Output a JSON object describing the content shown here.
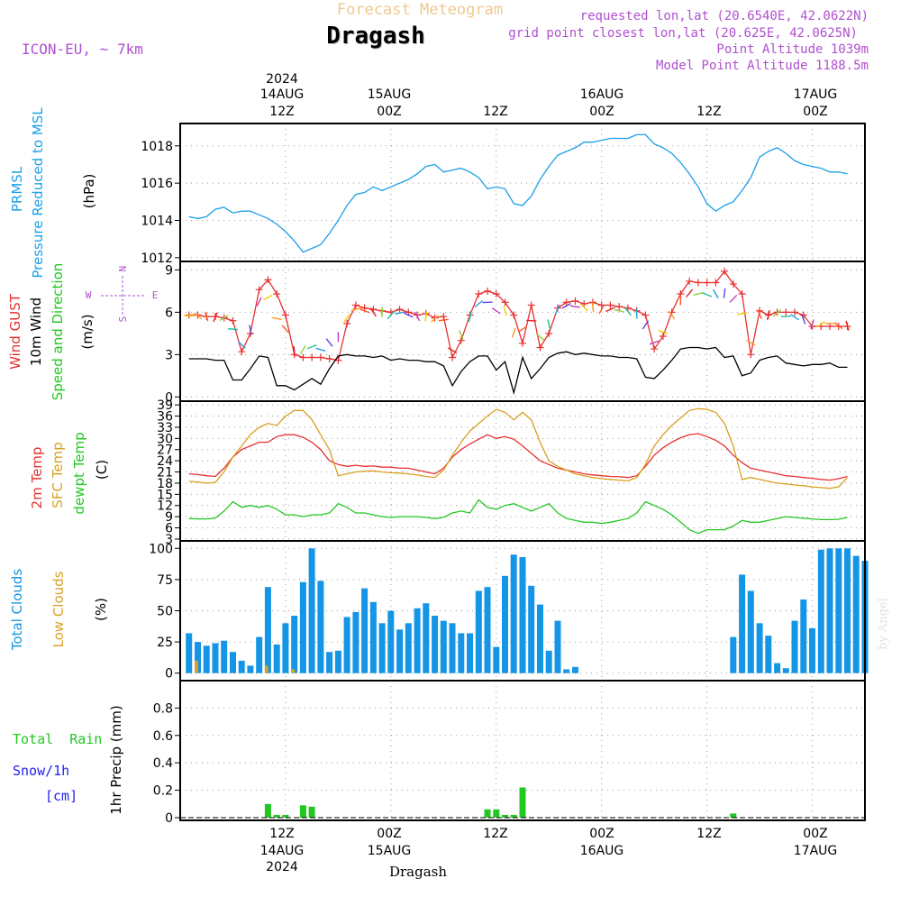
{
  "header": {
    "supertitle": "Forecast Meteogram",
    "location": "Dragash",
    "model": "ICON-EU, ~ 7km",
    "requested": "requested lon,lat (20.6540E, 42.0622N)",
    "gridpoint": "grid point closest lon,lat (20.625E, 42.0625N)",
    "point_alt": "Point Altitude 1039m",
    "model_alt": "Model Point Altitude 1188.5m",
    "credit": "by Angel",
    "bottom_label": "Dragash"
  },
  "colors": {
    "prmsl": "#1aa0e8",
    "gust": "#e83030",
    "wind10m": "#000000",
    "sfc": "#d8a020",
    "dewpt": "#22c822",
    "tcc": "#1595e6",
    "lcc": "#d9a22a",
    "rain": "#22c822",
    "snow": "#2222ee",
    "title_purple": "#b050d0",
    "supertitle": "#f0c890"
  },
  "time_axis": {
    "start_hour": 0,
    "end_hour": 78,
    "ticks": [
      {
        "hour": 12,
        "line1": "12Z",
        "line2": "14AUG",
        "line3": "2024"
      },
      {
        "hour": 24,
        "line1": "00Z",
        "line2": "15AUG",
        "line3": ""
      },
      {
        "hour": 36,
        "line1": "12Z",
        "line2": "",
        "line3": ""
      },
      {
        "hour": 48,
        "line1": "00Z",
        "line2": "16AUG",
        "line3": ""
      },
      {
        "hour": 60,
        "line1": "12Z",
        "line2": "",
        "line3": ""
      },
      {
        "hour": 72,
        "line1": "00Z",
        "line2": "17AUG",
        "line3": ""
      }
    ]
  },
  "chart_data": [
    {
      "type": "line",
      "panel": "pressure",
      "label_lines": [
        "PRMSL",
        "Pressure Reduced to MSL"
      ],
      "unit": "(hPa)",
      "ylim": [
        1011.8,
        1019.2
      ],
      "yticks": [
        1012,
        1014,
        1016,
        1018
      ],
      "series": [
        {
          "name": "PRMSL",
          "values": [
            1014.2,
            1014.1,
            1014.2,
            1014.6,
            1014.7,
            1014.4,
            1014.5,
            1014.5,
            1014.3,
            1014.1,
            1013.8,
            1013.4,
            1012.9,
            1012.3,
            1012.5,
            1012.7,
            1013.3,
            1014.0,
            1014.8,
            1015.4,
            1015.5,
            1015.8,
            1015.6,
            1015.8,
            1016.0,
            1016.2,
            1016.5,
            1016.9,
            1017.0,
            1016.6,
            1016.7,
            1016.8,
            1016.6,
            1016.3,
            1015.7,
            1015.8,
            1015.7,
            1014.9,
            1014.8,
            1015.3,
            1016.2,
            1016.9,
            1017.5,
            1017.7,
            1017.9,
            1018.2,
            1018.2,
            1018.3,
            1018.4,
            1018.4,
            1018.4,
            1018.6,
            1018.6,
            1018.1,
            1017.9,
            1017.6,
            1017.1,
            1016.5,
            1015.8,
            1014.9,
            1014.5,
            1014.8,
            1015.0,
            1015.6,
            1016.3,
            1017.4,
            1017.7,
            1017.9,
            1017.6,
            1017.2,
            1017.0,
            1016.9,
            1016.8,
            1016.6,
            1016.6,
            1016.5
          ]
        }
      ]
    },
    {
      "type": "line",
      "panel": "wind",
      "label_lines": [
        "Wind GUST",
        "10m Wind",
        "Speed and Direction"
      ],
      "unit": "(m/s)",
      "compass": {
        "n": "N",
        "s": "S",
        "w": "W",
        "e": "E"
      },
      "ylim": [
        -0.3,
        9.6
      ],
      "yticks": [
        0,
        3,
        6,
        9
      ],
      "series": [
        {
          "name": "Wind GUST",
          "values": [
            5.8,
            5.8,
            5.7,
            5.7,
            5.6,
            5.4,
            3.2,
            4.5,
            7.6,
            8.3,
            7.3,
            5.8,
            3.0,
            2.8,
            2.8,
            2.8,
            2.7,
            2.6,
            5.2,
            6.5,
            6.3,
            6.2,
            6.1,
            6.0,
            6.2,
            6.0,
            5.8,
            5.9,
            5.6,
            5.7,
            2.8,
            4.0,
            5.8,
            7.3,
            7.5,
            7.3,
            6.7,
            5.8,
            3.8,
            6.5,
            3.5,
            4.5,
            6.3,
            6.7,
            6.8,
            6.6,
            6.7,
            6.5,
            6.5,
            6.4,
            6.3,
            6.1,
            5.8,
            3.4,
            4.3,
            6.0,
            7.3,
            8.2,
            8.1,
            8.1,
            8.1,
            8.9,
            8.0,
            7.3,
            3.0,
            6.1,
            5.8,
            6.0,
            6.0,
            6.0,
            5.8,
            5.0,
            5.0,
            5.0,
            5.0,
            5.0
          ]
        },
        {
          "name": "10m Wind",
          "values": [
            2.7,
            2.7,
            2.7,
            2.6,
            2.6,
            1.2,
            1.2,
            2.0,
            2.9,
            2.8,
            0.8,
            0.8,
            0.5,
            0.9,
            1.3,
            0.9,
            2.0,
            2.9,
            3.0,
            2.9,
            2.9,
            2.8,
            2.9,
            2.6,
            2.7,
            2.6,
            2.6,
            2.5,
            2.5,
            2.2,
            0.8,
            1.8,
            2.5,
            2.9,
            2.9,
            1.9,
            2.5,
            0.3,
            2.8,
            1.3,
            2.0,
            2.8,
            3.1,
            3.2,
            3.0,
            3.1,
            3.0,
            2.9,
            2.9,
            2.8,
            2.8,
            2.7,
            1.4,
            1.3,
            1.9,
            2.6,
            3.4,
            3.5,
            3.5,
            3.4,
            3.5,
            2.8,
            2.9,
            1.5,
            1.7,
            2.6,
            2.8,
            2.9,
            2.4,
            2.3,
            2.2,
            2.3,
            2.3,
            2.4,
            2.1,
            2.1
          ]
        }
      ]
    },
    {
      "type": "line",
      "panel": "temperature",
      "label_lines": [
        "2m Temp",
        "SFC Temp",
        "dewpt Temp"
      ],
      "unit": "(C)",
      "ylim": [
        2.5,
        40
      ],
      "yticks": [
        3,
        6,
        9,
        12,
        15,
        18,
        21,
        24,
        27,
        30,
        33,
        36,
        39
      ],
      "series": [
        {
          "name": "2m Temp",
          "values": [
            20.5,
            20.3,
            20.0,
            19.8,
            22.0,
            25.0,
            27.0,
            28.0,
            29.0,
            29.0,
            30.5,
            31.0,
            31.0,
            30.3,
            29.0,
            27.0,
            24.0,
            23.0,
            22.5,
            22.8,
            22.5,
            22.6,
            22.3,
            22.3,
            22.0,
            22.0,
            21.5,
            21.0,
            20.5,
            22.0,
            25.0,
            27.0,
            28.5,
            29.8,
            31.0,
            30.0,
            30.5,
            29.8,
            28.0,
            26.0,
            24.0,
            23.0,
            22.0,
            21.5,
            21.0,
            20.5,
            20.2,
            20.0,
            19.8,
            19.7,
            19.5,
            20.0,
            22.5,
            25.5,
            27.5,
            29.0,
            30.2,
            31.0,
            31.3,
            30.5,
            29.5,
            28.0,
            25.5,
            23.5,
            22.0,
            21.5,
            21.0,
            20.5,
            20.0,
            19.8,
            19.5,
            19.3,
            19.0,
            18.8,
            19.2,
            19.8
          ]
        },
        {
          "name": "SFC Temp",
          "values": [
            18.5,
            18.3,
            18.0,
            18.2,
            21.0,
            25.0,
            28.0,
            31.0,
            33.0,
            34.0,
            33.5,
            36.0,
            37.5,
            37.5,
            35.0,
            31.0,
            27.0,
            20.0,
            20.5,
            21.0,
            21.2,
            21.3,
            21.0,
            20.8,
            20.7,
            20.5,
            20.2,
            19.8,
            19.5,
            21.5,
            25.5,
            29.0,
            32.0,
            34.0,
            36.0,
            37.8,
            37.0,
            35.0,
            37.0,
            35.0,
            29.0,
            24.0,
            22.5,
            21.5,
            20.5,
            20.0,
            19.5,
            19.2,
            19.0,
            18.8,
            18.6,
            19.5,
            23.0,
            28.0,
            31.0,
            33.5,
            35.5,
            37.5,
            38.0,
            37.8,
            37.0,
            34.0,
            28.0,
            19.0,
            19.5,
            19.0,
            18.5,
            18.0,
            17.8,
            17.5,
            17.3,
            17.0,
            16.8,
            16.6,
            17.0,
            19.5
          ]
        },
        {
          "name": "dewpt Temp",
          "values": [
            8.5,
            8.4,
            8.4,
            8.6,
            10.5,
            13.0,
            11.5,
            12.0,
            11.5,
            12.0,
            11.0,
            9.5,
            9.5,
            9.0,
            9.5,
            9.5,
            10.0,
            12.5,
            11.5,
            10.0,
            10.0,
            9.5,
            9.0,
            8.8,
            9.0,
            9.0,
            9.0,
            8.8,
            8.5,
            8.8,
            10.0,
            10.5,
            10.0,
            13.5,
            11.5,
            11.0,
            12.0,
            12.5,
            11.5,
            10.5,
            11.5,
            12.5,
            10.0,
            8.5,
            8.0,
            7.5,
            7.5,
            7.2,
            7.5,
            8.0,
            8.5,
            10.0,
            13.0,
            12.0,
            11.0,
            9.5,
            7.5,
            5.5,
            4.5,
            5.5,
            5.5,
            5.5,
            6.5,
            8.0,
            7.5,
            7.5,
            8.0,
            8.5,
            9.0,
            8.8,
            8.6,
            8.4,
            8.2,
            8.2,
            8.3,
            8.8
          ]
        }
      ]
    },
    {
      "type": "bar",
      "panel": "clouds",
      "label_lines": [
        "Total Clouds",
        "Low Clouds"
      ],
      "unit": "(%)",
      "ylim": [
        -6,
        106
      ],
      "yticks": [
        0,
        25,
        50,
        75,
        100
      ],
      "series": [
        {
          "name": "Total Clouds",
          "values": [
            32,
            25,
            22,
            24,
            26,
            17,
            10,
            6,
            29,
            69,
            23,
            40,
            46,
            73,
            100,
            74,
            17,
            18,
            45,
            49,
            68,
            57,
            40,
            50,
            35,
            40,
            52,
            56,
            46,
            42,
            40,
            32,
            32,
            66,
            69,
            21,
            78,
            95,
            93,
            70,
            55,
            18,
            42,
            3,
            5,
            0,
            0,
            0,
            0,
            0,
            0,
            0,
            0,
            0,
            0,
            0,
            0,
            0,
            0,
            0,
            0,
            0,
            29,
            79,
            66,
            40,
            30,
            8,
            4,
            42,
            59,
            36,
            99,
            100,
            100,
            100,
            94,
            90
          ]
        },
        {
          "name": "Low Clouds",
          "values": [
            0,
            10,
            0,
            0,
            0,
            0,
            0,
            0,
            0,
            6,
            0,
            0,
            3,
            0,
            0,
            0,
            0,
            0,
            0,
            0,
            0,
            0,
            0,
            0,
            0,
            0,
            0,
            0,
            0,
            0,
            0,
            0,
            0,
            0,
            0,
            0,
            0,
            0,
            0,
            0,
            0,
            0,
            0,
            0,
            0,
            0,
            0,
            0,
            0,
            0,
            0,
            0,
            0,
            0,
            0,
            0,
            0,
            0,
            0,
            0,
            0,
            0,
            0,
            0,
            0,
            0,
            0,
            0,
            0,
            0,
            0,
            0,
            0,
            0,
            0,
            0,
            0,
            0
          ]
        }
      ]
    },
    {
      "type": "bar",
      "panel": "precip",
      "label_lines": [
        "Total  Rain",
        "Snow/1h",
        "[cm]"
      ],
      "unit": "1hr Precip (mm)",
      "ylim": [
        -0.02,
        1.0
      ],
      "yticks": [
        0,
        0.2,
        0.4,
        0.6,
        0.8
      ],
      "series": [
        {
          "name": "Total Rain",
          "values": [
            0,
            0,
            0,
            0,
            0,
            0,
            0,
            0,
            0,
            0.1,
            0.02,
            0.02,
            0,
            0.09,
            0.08,
            0,
            0,
            0,
            0,
            0,
            0,
            0,
            0,
            0,
            0,
            0,
            0,
            0,
            0,
            0,
            0,
            0,
            0,
            0,
            0.06,
            0.06,
            0.02,
            0.02,
            0.22,
            0,
            0,
            0,
            0,
            0,
            0,
            0,
            0,
            0,
            0,
            0,
            0,
            0,
            0,
            0,
            0,
            0,
            0,
            0,
            0,
            0,
            0,
            0,
            0.03,
            0,
            0,
            0,
            0,
            0,
            0,
            0,
            0,
            0,
            0,
            0,
            0,
            0
          ]
        }
      ]
    }
  ]
}
